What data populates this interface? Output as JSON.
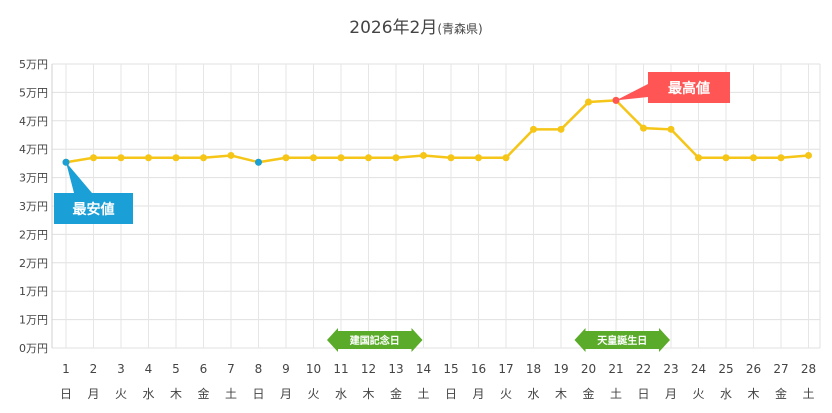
{
  "chart_data": {
    "type": "line",
    "title": "2026年2月",
    "subtitle": "(青森県)",
    "y_tick_labels": [
      "5万円",
      "5万円",
      "4万円",
      "4万円",
      "3万円",
      "3万円",
      "2万円",
      "2万円",
      "1万円",
      "1万円",
      "0万円"
    ],
    "ylim": [
      0,
      50000
    ],
    "grid": true,
    "x": [
      "1",
      "2",
      "3",
      "4",
      "5",
      "6",
      "7",
      "8",
      "9",
      "10",
      "11",
      "12",
      "13",
      "14",
      "15",
      "16",
      "17",
      "18",
      "19",
      "20",
      "21",
      "22",
      "23",
      "24",
      "25",
      "26",
      "27",
      "28"
    ],
    "weekdays": [
      "日",
      "月",
      "火",
      "水",
      "木",
      "金",
      "土",
      "日",
      "月",
      "火",
      "水",
      "木",
      "金",
      "土",
      "日",
      "月",
      "火",
      "水",
      "木",
      "金",
      "土",
      "日",
      "月",
      "火",
      "水",
      "木",
      "金",
      "土"
    ],
    "series": [
      {
        "color": "#f5c518",
        "values": [
          32700,
          33500,
          33500,
          33500,
          33500,
          33500,
          33900,
          32700,
          33500,
          33500,
          33500,
          33500,
          33500,
          33900,
          33500,
          33500,
          33500,
          38500,
          38500,
          43300,
          43600,
          38700,
          38500,
          33500,
          33500,
          33500,
          33500,
          33900
        ]
      }
    ],
    "annotations": [
      {
        "label": "最安値",
        "x": "1",
        "color": "#1a9fd6"
      },
      {
        "label": "最安値",
        "x": "8",
        "color": "#1a9fd6",
        "marker_only": true
      },
      {
        "label": "最高値",
        "x": "21",
        "color": "#ff5555"
      }
    ],
    "holidays": [
      {
        "label": "建国記念日",
        "from": "11",
        "to": "14",
        "color": "#5aab2a"
      },
      {
        "label": "天皇誕生日",
        "from": "20",
        "to": "23",
        "color": "#5aab2a"
      }
    ]
  }
}
